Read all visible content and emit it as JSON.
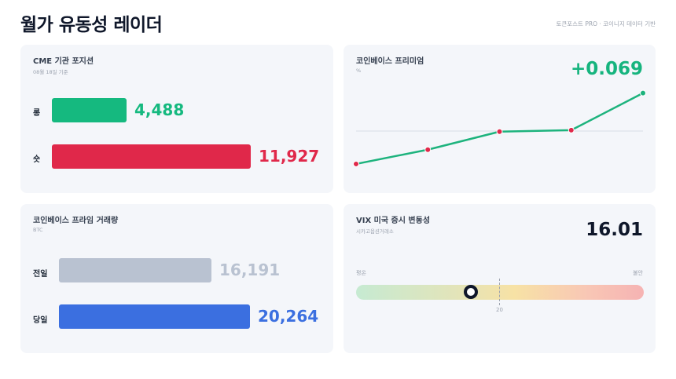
{
  "header": {
    "title": "월가 유동성 레이더",
    "source": "토큰포스트 PRO · 코이니지 데이터 기반"
  },
  "cme": {
    "title": "CME 기관 포지션",
    "subtitle": "08월 18일 기준",
    "long_label": "롱",
    "long_value": "4,488",
    "long_amount": 4488,
    "short_label": "숏",
    "short_value": "11,927",
    "short_amount": 11927,
    "long_color": "#15b97f",
    "short_color": "#e0284a"
  },
  "premium": {
    "title": "코인베이스 프리미엄",
    "subtitle": "%",
    "value": "+0.069",
    "value_color": "#16b47e",
    "line_color": "#1db37d",
    "point_color": "#e0284a"
  },
  "chart_data": {
    "type": "line",
    "title": "코인베이스 프리미엄",
    "series": [
      {
        "values": [
          -0.08,
          -0.05,
          -0.012,
          -0.009,
          0.069
        ]
      }
    ],
    "baseline": 0
  },
  "volume": {
    "title": "코인베이스 프라임 거래량",
    "subtitle": "BTC",
    "prev_label": "전일",
    "prev_value": "16,191",
    "prev_amount": 16191,
    "today_label": "당일",
    "today_value": "20,264",
    "today_amount": 20264,
    "prev_color": "#b9c2d1",
    "today_color": "#3b6fe0"
  },
  "vix": {
    "title": "VIX 미국 증시 변동성",
    "subtitle": "시카고옵션거래소",
    "value": "16.01",
    "numeric_value": 16.01,
    "low_label": "평온",
    "high_label": "불안",
    "reference_label": "20",
    "reference_value": 20
  }
}
